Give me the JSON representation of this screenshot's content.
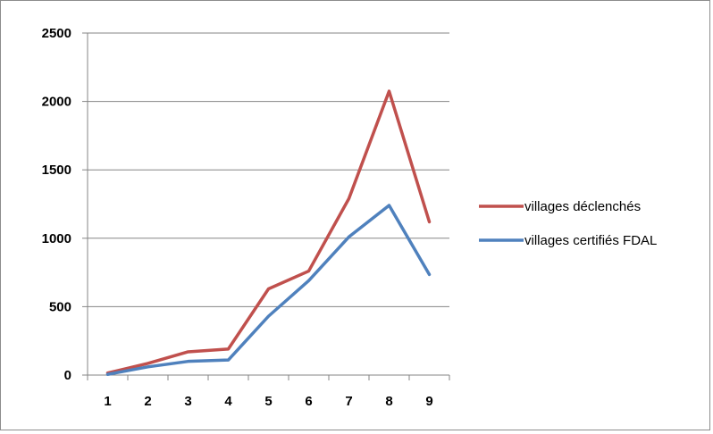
{
  "chart_data": {
    "type": "line",
    "title": "",
    "xlabel": "",
    "ylabel": "",
    "categories": [
      "1",
      "2",
      "3",
      "4",
      "5",
      "6",
      "7",
      "8",
      "9"
    ],
    "ylim": [
      0,
      2500
    ],
    "y_ticks": [
      "0",
      "500",
      "1000",
      "1500",
      "2000",
      "2500"
    ],
    "grid": "horizontal major gridlines",
    "legend_position": "right",
    "series": [
      {
        "name": "villages déclenchés",
        "color": "#c0504d",
        "values": [
          15,
          85,
          170,
          190,
          630,
          760,
          1290,
          2075,
          1120
        ]
      },
      {
        "name": "villages certifiés  FDAL",
        "color": "#4f81bd",
        "values": [
          5,
          60,
          100,
          110,
          430,
          690,
          1010,
          1240,
          735
        ]
      }
    ]
  }
}
